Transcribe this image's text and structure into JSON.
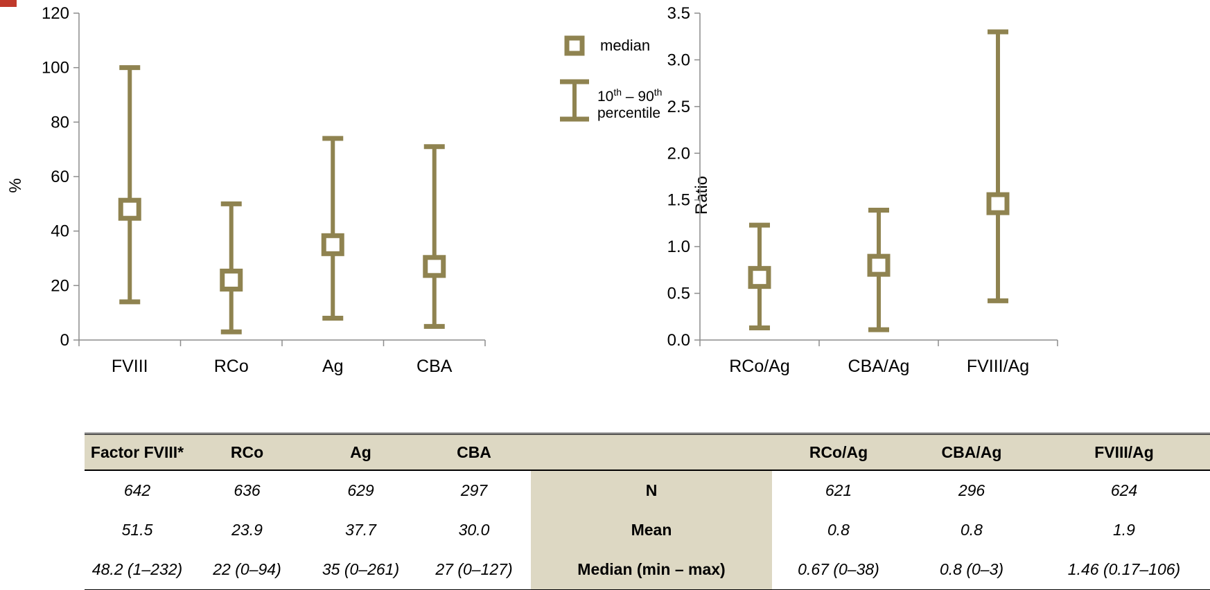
{
  "chart_data": [
    {
      "type": "errorbar",
      "ylabel": "%",
      "ylim": [
        0,
        120
      ],
      "yticks": [
        0,
        20,
        40,
        60,
        80,
        100,
        120
      ],
      "categories": [
        "FVIII",
        "RCo",
        "Ag",
        "CBA"
      ],
      "median": [
        48,
        22,
        35,
        27
      ],
      "p10": [
        14,
        3,
        8,
        5
      ],
      "p90": [
        100,
        50,
        74,
        71
      ]
    },
    {
      "type": "errorbar",
      "ylabel": "Ratio",
      "ylim": [
        0,
        3.5
      ],
      "yticks": [
        "0.0",
        "0.5",
        "1.0",
        "1.5",
        "2.0",
        "2.5",
        "3.0",
        "3.5"
      ],
      "categories": [
        "RCo/Ag",
        "CBA/Ag",
        "FVIII/Ag"
      ],
      "median": [
        0.67,
        0.8,
        1.46
      ],
      "p10": [
        0.13,
        0.11,
        0.42
      ],
      "p90": [
        1.23,
        1.39,
        3.3
      ]
    }
  ],
  "legend": {
    "median_label": "median",
    "range_label_line1": "10th – 90th",
    "range_label_line2": "percentile",
    "sup": "th"
  },
  "table": {
    "headers_left": [
      "Factor FVIII*",
      "RCo",
      "Ag",
      "CBA"
    ],
    "headers_right": [
      "RCo/Ag",
      "CBA/Ag",
      "FVIII/Ag"
    ],
    "rows": [
      {
        "label": "N",
        "left": [
          "642",
          "636",
          "629",
          "297"
        ],
        "right": [
          "621",
          "296",
          "624"
        ]
      },
      {
        "label": "Mean",
        "left": [
          "51.5",
          "23.9",
          "37.7",
          "30.0"
        ],
        "right": [
          "0.8",
          "0.8",
          "1.9"
        ]
      },
      {
        "label": "Median (min – max)",
        "left": [
          "48.2 (1–232)",
          "22 (0–94)",
          "35 (0–261)",
          "27 (0–127)"
        ],
        "right": [
          "0.67 (0–38)",
          "0.8 (0–3)",
          "1.46 (0.17–106)"
        ]
      }
    ]
  },
  "colors": {
    "series": "#8f8350",
    "table_fill": "#ddd8c3",
    "corner": "#c0392b"
  }
}
